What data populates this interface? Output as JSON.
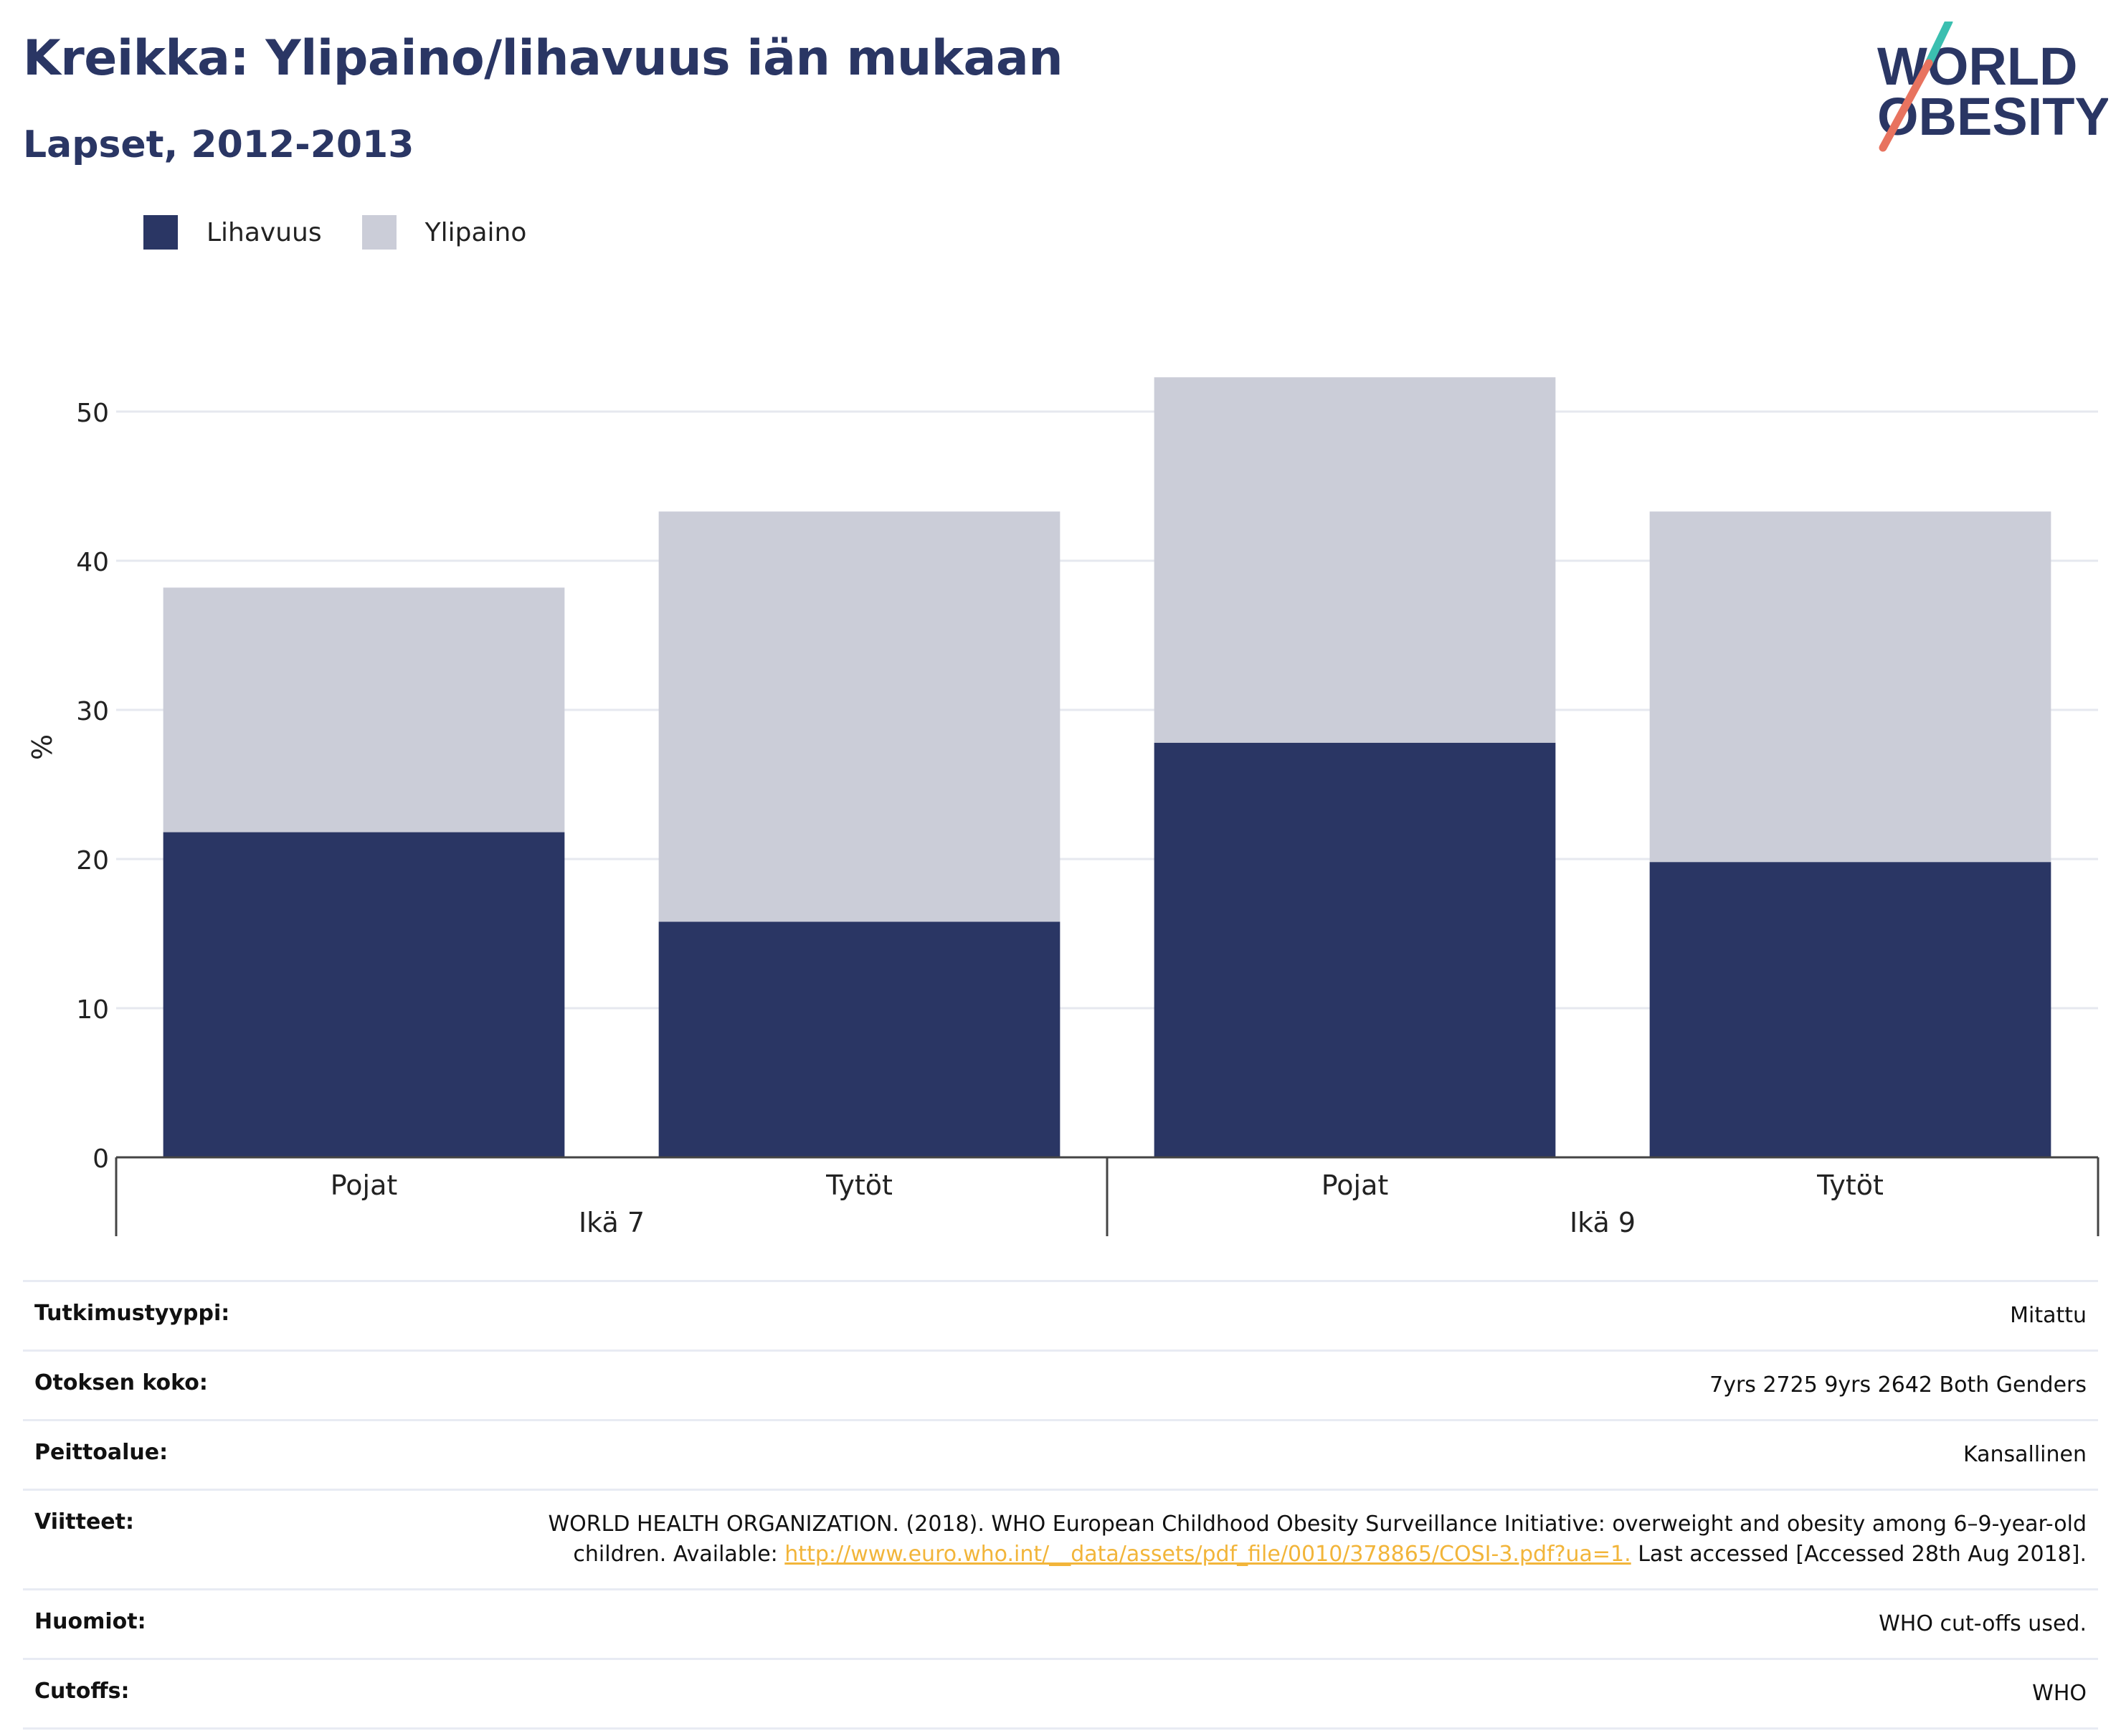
{
  "title": "Kreikka: Ylipaino/lihavuus iän mukaan",
  "subtitle": "Lapset, 2012-2013",
  "logo": {
    "line1": "WORLD",
    "line2": "OBESITY"
  },
  "colors": {
    "obesity": "#2a3664",
    "overweight": "#cbcdd8",
    "title": "#2a3664",
    "link": "#f2b53a"
  },
  "chart_data": {
    "type": "bar",
    "stacked": true,
    "categories": [
      "Pojat",
      "Tytöt",
      "Pojat",
      "Tytöt"
    ],
    "groups": [
      {
        "label": "Ikä 7",
        "categories": [
          0,
          1
        ]
      },
      {
        "label": "Ikä 9",
        "categories": [
          2,
          3
        ]
      }
    ],
    "series": [
      {
        "name": "Lihavuus",
        "color": "#2a3664",
        "values": [
          21.8,
          15.8,
          27.8,
          19.8
        ]
      },
      {
        "name": "Ylipaino",
        "color": "#cbcdd8",
        "values": [
          16.4,
          27.5,
          24.5,
          23.5
        ]
      }
    ],
    "ylabel": "%",
    "ylim": [
      0,
      55
    ],
    "yticks": [
      0,
      10,
      20,
      30,
      40,
      50
    ],
    "grid": true,
    "legend": "top-left"
  },
  "meta": {
    "rows": [
      {
        "label": "Tutkimustyyppi:",
        "value": "Mitattu"
      },
      {
        "label": "Otoksen koko:",
        "value": "7yrs 2725 9yrs 2642 Both Genders"
      },
      {
        "label": "Peittoalue:",
        "value": "Kansallinen"
      },
      {
        "label": "Viitteet:",
        "value_pre": "WORLD HEALTH ORGANIZATION. (2018). WHO European Childhood Obesity Surveillance Initiative: overweight and obesity among 6–9-year-old children. Available: ",
        "link": "http://www.euro.who.int/__data/assets/pdf_file/0010/378865/COSI-3.pdf?ua=1.",
        "value_post": " Last accessed [Accessed 28th Aug 2018]."
      },
      {
        "label": "Huomiot:",
        "value": "WHO cut-offs used."
      },
      {
        "label": "Cutoffs:",
        "value": "WHO"
      }
    ]
  }
}
